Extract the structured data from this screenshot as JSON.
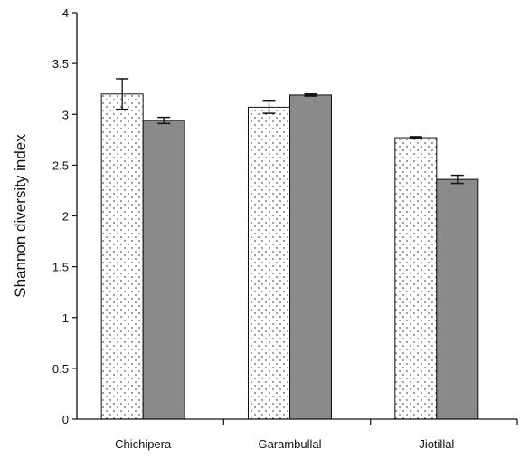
{
  "chart_data": {
    "type": "bar",
    "title": "",
    "xlabel": "",
    "ylabel": "Shannon diversity index",
    "ylim": [
      0,
      4
    ],
    "yticks": [
      0,
      0.5,
      1,
      1.5,
      2,
      2.5,
      3,
      3.5,
      4
    ],
    "ytick_labels": [
      "0",
      "0.5",
      "1",
      "1.5",
      "2",
      "2.5",
      "3",
      "3.5",
      "4"
    ],
    "grid": false,
    "legend": "none",
    "categories": [
      "Chichipera",
      "Garambullal",
      "Jiotillal"
    ],
    "series": [
      {
        "fill": "dotted-white",
        "color": "#ffffff",
        "values": [
          3.2,
          3.07,
          2.77
        ],
        "error": [
          0.15,
          0.06,
          0.01
        ]
      },
      {
        "fill": "solid-gray",
        "color": "#8a8a8a",
        "values": [
          2.94,
          3.19,
          2.36
        ],
        "error": [
          0.03,
          0.01,
          0.04
        ]
      }
    ]
  }
}
